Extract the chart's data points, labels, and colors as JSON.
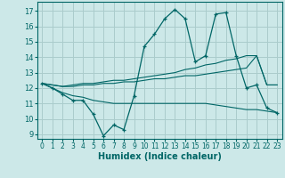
{
  "xlabel": "Humidex (Indice chaleur)",
  "bg_color": "#cce8e8",
  "grid_color": "#aacccc",
  "line_color": "#006666",
  "text_color": "#006666",
  "xlim": [
    -0.5,
    23.5
  ],
  "ylim": [
    8.7,
    17.6
  ],
  "yticks": [
    9,
    10,
    11,
    12,
    13,
    14,
    15,
    16,
    17
  ],
  "xticks": [
    0,
    1,
    2,
    3,
    4,
    5,
    6,
    7,
    8,
    9,
    10,
    11,
    12,
    13,
    14,
    15,
    16,
    17,
    18,
    19,
    20,
    21,
    22,
    23
  ],
  "line1_x": [
    0,
    1,
    2,
    3,
    4,
    5,
    6,
    7,
    8,
    9,
    10,
    11,
    12,
    13,
    14,
    15,
    16,
    17,
    18,
    19,
    20,
    21,
    22,
    23
  ],
  "line1_y": [
    12.3,
    12.0,
    11.6,
    11.2,
    11.2,
    10.3,
    8.9,
    9.6,
    9.3,
    11.5,
    14.7,
    15.5,
    16.5,
    17.1,
    16.5,
    13.7,
    14.1,
    16.8,
    16.9,
    14.1,
    12.0,
    12.2,
    10.7,
    10.4
  ],
  "line2_x": [
    0,
    1,
    2,
    3,
    4,
    5,
    6,
    7,
    8,
    9,
    10,
    11,
    12,
    13,
    14,
    15,
    16,
    17,
    18,
    19,
    20,
    21,
    22,
    23
  ],
  "line2_y": [
    12.3,
    12.0,
    11.7,
    11.5,
    11.4,
    11.2,
    11.1,
    11.0,
    11.0,
    11.0,
    11.0,
    11.0,
    11.0,
    11.0,
    11.0,
    11.0,
    11.0,
    10.9,
    10.8,
    10.7,
    10.6,
    10.6,
    10.5,
    10.4
  ],
  "line3_x": [
    0,
    1,
    2,
    3,
    4,
    5,
    6,
    7,
    8,
    9,
    10,
    11,
    12,
    13,
    14,
    15,
    16,
    17,
    18,
    19,
    20,
    21,
    22,
    23
  ],
  "line3_y": [
    12.3,
    12.2,
    12.1,
    12.1,
    12.2,
    12.2,
    12.3,
    12.3,
    12.4,
    12.4,
    12.5,
    12.6,
    12.6,
    12.7,
    12.8,
    12.8,
    12.9,
    13.0,
    13.1,
    13.2,
    13.3,
    14.1,
    12.2,
    12.2
  ],
  "line4_x": [
    0,
    1,
    2,
    3,
    4,
    5,
    6,
    7,
    8,
    9,
    10,
    11,
    12,
    13,
    14,
    15,
    16,
    17,
    18,
    19,
    20,
    21,
    22,
    23
  ],
  "line4_y": [
    12.3,
    12.2,
    12.1,
    12.2,
    12.3,
    12.3,
    12.4,
    12.5,
    12.5,
    12.6,
    12.7,
    12.8,
    12.9,
    13.0,
    13.2,
    13.3,
    13.5,
    13.6,
    13.8,
    13.9,
    14.1,
    14.1,
    12.2,
    12.2
  ]
}
